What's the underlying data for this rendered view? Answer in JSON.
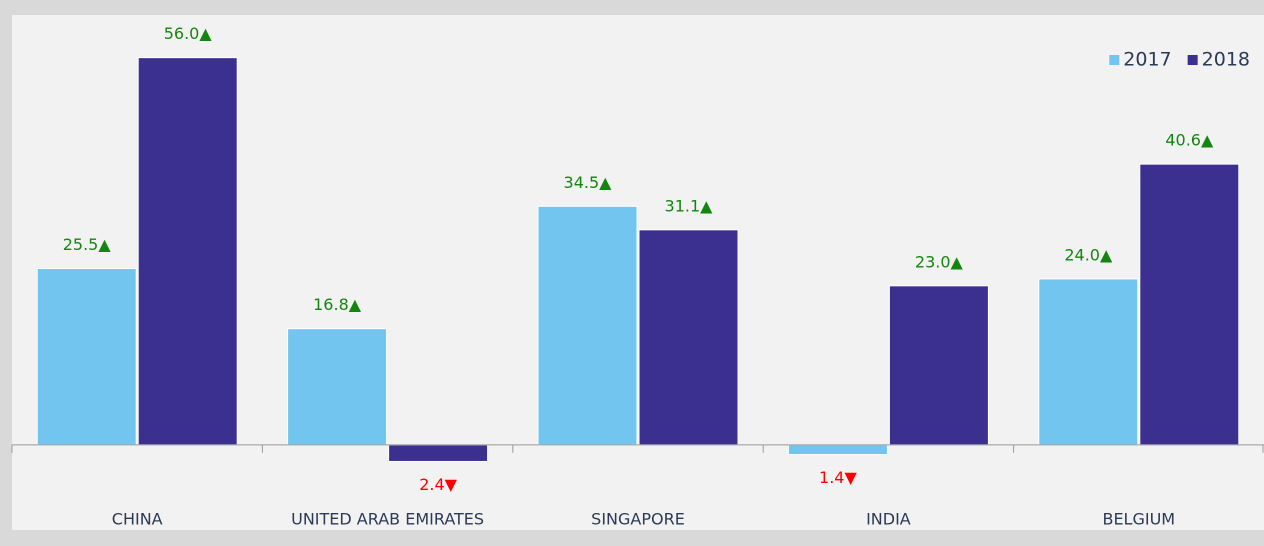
{
  "chart_data": {
    "type": "bar",
    "categories": [
      "CHINA",
      "UNITED ARAB EMIRATES",
      "SINGAPORE",
      "INDIA",
      "BELGIUM"
    ],
    "series": [
      {
        "name": "2017",
        "color": "#72c5ef",
        "values": [
          25.5,
          16.8,
          34.5,
          -1.4,
          24.0
        ],
        "value_labels": [
          "25.5▲",
          "16.8▲",
          "34.5▲",
          "1.4▼",
          "24.0▲"
        ]
      },
      {
        "name": "2018",
        "color": "#3b2f8f",
        "values": [
          56.0,
          -2.4,
          31.1,
          23.0,
          40.6
        ],
        "value_labels": [
          "56.0▲",
          "2.4▼",
          "31.1▲",
          "23.0▲",
          "40.6▲"
        ]
      }
    ],
    "ylim": [
      -10,
      60
    ],
    "legend": "top-right",
    "positive_label_color": "#14860f",
    "negative_label_color": "#ff0000"
  }
}
